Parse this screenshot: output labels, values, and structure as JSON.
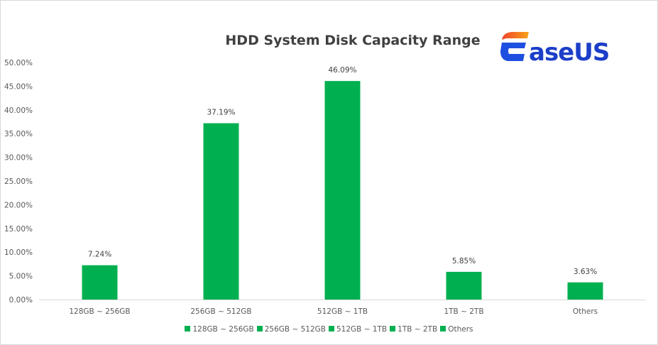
{
  "chart_data": {
    "type": "bar",
    "title": "HDD System Disk Capacity Range",
    "categories": [
      "128GB ~ 256GB",
      "256GB ~ 512GB",
      "512GB ~ 1TB",
      "1TB ~ 2TB",
      "Others"
    ],
    "values": [
      7.24,
      37.19,
      46.09,
      5.85,
      3.63
    ],
    "data_labels": [
      "7.24%",
      "37.19%",
      "46.09%",
      "5.85%",
      "3.63%"
    ],
    "y_ticks": [
      "0.00%",
      "5.00%",
      "10.00%",
      "15.00%",
      "20.00%",
      "25.00%",
      "30.00%",
      "35.00%",
      "40.00%",
      "45.00%",
      "50.00%"
    ],
    "xlabel": "",
    "ylabel": "",
    "ylim": [
      0,
      50
    ],
    "grid": false,
    "legend_position": "bottom",
    "bar_color": "#00b050"
  },
  "logo": {
    "text": "EaseUS"
  }
}
